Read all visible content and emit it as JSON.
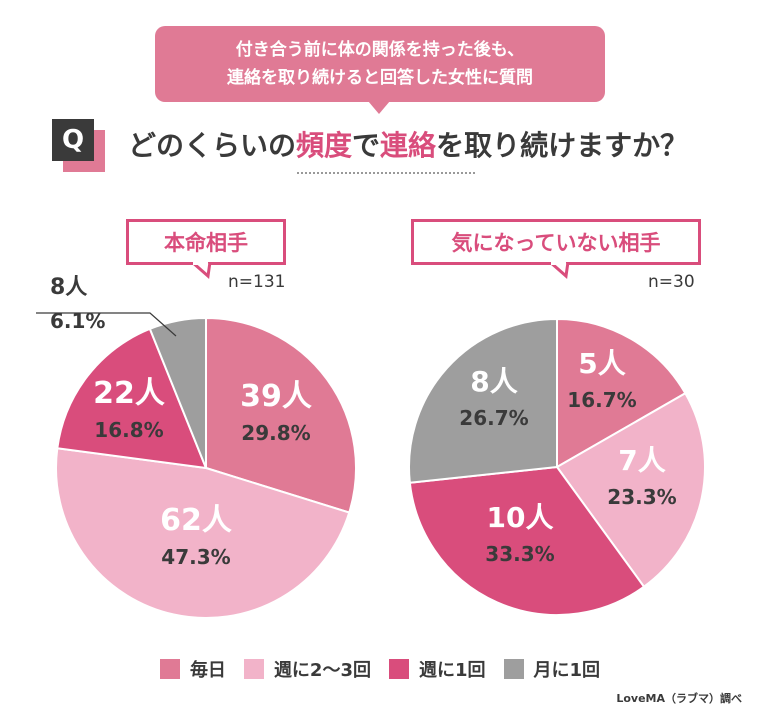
{
  "header": {
    "bubble_line1": "付き合う前に体の関係を持った後も、",
    "bubble_line2": "連絡を取り続けると回答した女性に質問",
    "q_badge": "Q",
    "question_parts": [
      "どのくらいの",
      "頻度",
      "で",
      "連絡",
      "を取り続けますか？"
    ]
  },
  "colors": {
    "daily": "#e07a95",
    "weekly_2_3": "#f2b3c9",
    "weekly_1": "#d94d7c",
    "monthly_1": "#9e9e9e",
    "accent": "#d94d7c"
  },
  "chart_data": [
    {
      "type": "pie",
      "title": "本命相手",
      "n_label": "n=131",
      "slices": [
        {
          "key": "daily",
          "label": "毎日",
          "count": "39人",
          "count_value": 39,
          "percent": "29.8%",
          "value": 29.8
        },
        {
          "key": "weekly_2_3",
          "label": "週に2〜3回",
          "count": "62人",
          "count_value": 62,
          "percent": "47.3%",
          "value": 47.3
        },
        {
          "key": "weekly_1",
          "label": "週に1回",
          "count": "22人",
          "count_value": 22,
          "percent": "16.8%",
          "value": 16.8
        },
        {
          "key": "monthly_1",
          "label": "月に1回",
          "count": "8人",
          "count_value": 8,
          "percent": "6.1%",
          "value": 6.1
        }
      ]
    },
    {
      "type": "pie",
      "title": "気になっていない相手",
      "n_label": "n=30",
      "slices": [
        {
          "key": "daily",
          "label": "毎日",
          "count": "5人",
          "count_value": 5,
          "percent": "16.7%",
          "value": 16.7
        },
        {
          "key": "weekly_2_3",
          "label": "週に2〜3回",
          "count": "7人",
          "count_value": 7,
          "percent": "23.3%",
          "value": 23.3
        },
        {
          "key": "weekly_1",
          "label": "週に1回",
          "count": "10人",
          "count_value": 10,
          "percent": "33.3%",
          "value": 33.3
        },
        {
          "key": "monthly_1",
          "label": "月に1回",
          "count": "8人",
          "count_value": 8,
          "percent": "26.7%",
          "value": 26.7
        }
      ]
    }
  ],
  "legend": [
    {
      "key": "daily",
      "label": "毎日"
    },
    {
      "key": "weekly_2_3",
      "label": "週に2〜3回"
    },
    {
      "key": "weekly_1",
      "label": "週に1回"
    },
    {
      "key": "monthly_1",
      "label": "月に1回"
    }
  ],
  "credit": "LoveMA（ラブマ）調べ"
}
